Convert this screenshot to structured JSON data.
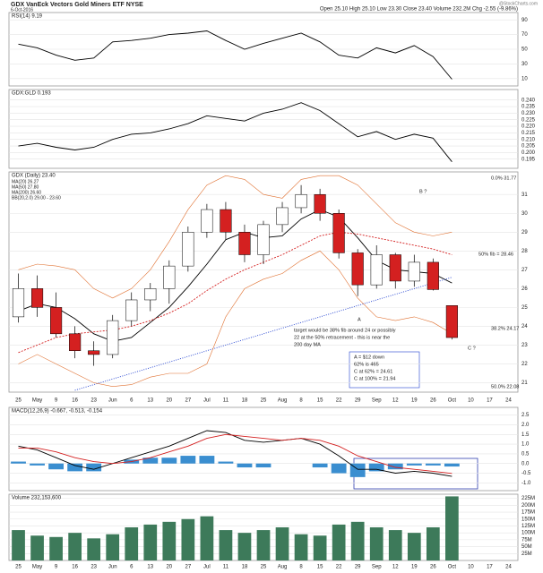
{
  "header": {
    "title": "GDX VanEck Vectors Gold Miners ETF NYSE",
    "date": "6-Oct-2016",
    "quote": "Open 25.10 High 25.10 Low 23.30 Close 23.40 Volume 232.2M Chg -2.55 (-9.86%)",
    "source": "@StockCharts.com"
  },
  "chart_data": [
    {
      "type": "line",
      "title": "RSI(14) 9.19",
      "ylim": [
        0,
        100
      ],
      "yticks": [
        10,
        30,
        50,
        70,
        90
      ],
      "grid": true,
      "series": [
        {
          "color": "#000000",
          "values": [
            57,
            52,
            42,
            35,
            38,
            60,
            62,
            65,
            70,
            72,
            75,
            62,
            50,
            58,
            65,
            72,
            60,
            42,
            38,
            52,
            45,
            55,
            40,
            9.19,
            null,
            null,
            null
          ]
        }
      ]
    },
    {
      "type": "line",
      "title": "GDX:GLD 0.193",
      "ylim": [
        0.188,
        0.248
      ],
      "yticks": [
        {
          "value": 0.195,
          "label": "0.195"
        },
        {
          "value": 0.2,
          "label": "0.200"
        },
        {
          "value": 0.205,
          "label": "0.205"
        },
        {
          "value": 0.21,
          "label": "0.210"
        },
        {
          "value": 0.215,
          "label": "0.215"
        },
        {
          "value": 0.22,
          "label": "0.220"
        },
        {
          "value": 0.225,
          "label": "0.225"
        },
        {
          "value": 0.23,
          "label": "0.230"
        },
        {
          "value": 0.235,
          "label": "0.235"
        },
        {
          "value": 0.24,
          "label": "0.240"
        }
      ],
      "grid": true,
      "series": [
        {
          "color": "#000000",
          "values": [
            0.205,
            0.207,
            0.204,
            0.202,
            0.204,
            0.21,
            0.214,
            0.215,
            0.218,
            0.222,
            0.228,
            0.226,
            0.224,
            0.23,
            0.233,
            0.238,
            0.232,
            0.222,
            0.212,
            0.216,
            0.21,
            0.214,
            0.211,
            0.193,
            null,
            null,
            null
          ]
        }
      ]
    },
    {
      "type": "candlestick",
      "title": "GDX (Daily) 23.40",
      "ylim": [
        20.5,
        32.2
      ],
      "yticks": [
        21,
        22,
        23,
        24,
        25,
        26,
        27,
        28,
        29,
        30,
        31
      ],
      "grid": true,
      "categories": [
        "25",
        "May",
        "9",
        "16",
        "23",
        "Jun",
        "6",
        "13",
        "20",
        "27",
        "Jul",
        "11",
        "18",
        "25",
        "Aug",
        "8",
        "15",
        "22",
        "29",
        "Sep",
        "12",
        "19",
        "26",
        "Oct",
        "10",
        "17",
        "24"
      ],
      "open": [
        24.5,
        26.0,
        25.0,
        23.6,
        22.7,
        22.5,
        24.3,
        25.4,
        26.0,
        27.2,
        29.0,
        30.2,
        29.0,
        27.8,
        29.4,
        30.3,
        31.0,
        30.0,
        27.9,
        26.2,
        27.8,
        26.4,
        27.4,
        25.1,
        null,
        null,
        null
      ],
      "high": [
        26.8,
        26.7,
        25.8,
        24.0,
        23.2,
        24.6,
        25.8,
        26.3,
        27.5,
        29.3,
        30.5,
        30.6,
        29.4,
        29.6,
        30.6,
        31.5,
        31.3,
        30.2,
        28.1,
        28.3,
        27.9,
        27.8,
        27.6,
        25.1,
        null,
        null,
        null
      ],
      "low": [
        24.2,
        24.5,
        23.4,
        22.3,
        21.9,
        22.3,
        24.0,
        24.8,
        25.2,
        26.9,
        28.7,
        28.6,
        27.4,
        27.3,
        29.0,
        30.0,
        29.6,
        27.6,
        25.6,
        26.0,
        26.0,
        26.1,
        25.9,
        23.3,
        null,
        null,
        null
      ],
      "close": [
        26.0,
        25.0,
        23.6,
        22.7,
        22.5,
        24.3,
        25.4,
        26.0,
        27.2,
        29.0,
        30.2,
        29.0,
        27.8,
        29.4,
        30.3,
        31.0,
        30.0,
        27.9,
        26.2,
        27.8,
        26.4,
        27.4,
        25.95,
        23.4,
        null,
        null,
        null
      ],
      "series": [
        {
          "name": "MA(20) 26.27",
          "color": "#000000",
          "values": [
            24.8,
            25.2,
            25.0,
            24.4,
            23.6,
            23.2,
            23.4,
            24.2,
            25.0,
            26.1,
            27.3,
            28.6,
            29.0,
            28.7,
            28.8,
            29.7,
            30.2,
            29.8,
            28.7,
            27.5,
            27.0,
            26.9,
            26.8,
            26.3,
            null,
            null,
            null
          ]
        },
        {
          "name": "MA(50) 27.80",
          "color": "#d42020",
          "values": [
            22.6,
            23.0,
            23.4,
            23.6,
            23.7,
            23.8,
            24.0,
            24.3,
            24.7,
            25.2,
            25.9,
            26.5,
            27.0,
            27.4,
            27.8,
            28.3,
            28.8,
            29.0,
            28.9,
            28.7,
            28.5,
            28.3,
            28.1,
            27.8,
            null,
            null,
            null
          ]
        },
        {
          "name": "MA(200) 26.60",
          "color": "#2040d0",
          "values": [
            null,
            null,
            null,
            20.6,
            20.9,
            21.2,
            21.5,
            21.8,
            22.1,
            22.4,
            22.7,
            23.0,
            23.3,
            23.6,
            23.9,
            24.2,
            24.5,
            24.8,
            25.1,
            25.4,
            25.7,
            26.0,
            26.3,
            26.6,
            null,
            null,
            null
          ]
        },
        {
          "name": "BB(20,2.0) 29.00 - 23.60",
          "color": "#e07030",
          "values": [
            27.0,
            27.3,
            27.2,
            27.0,
            26.0,
            25.5,
            26.0,
            27.0,
            28.5,
            30.2,
            31.5,
            32.0,
            31.8,
            31.0,
            30.8,
            31.8,
            32.0,
            32.0,
            31.5,
            30.5,
            29.5,
            29.0,
            28.8,
            29.0,
            null,
            null,
            null
          ]
        },
        {
          "color": "#e07030",
          "values": [
            22.0,
            22.5,
            22.0,
            21.5,
            21.0,
            20.8,
            20.9,
            21.3,
            21.5,
            21.5,
            22.0,
            24.5,
            26.0,
            26.5,
            26.8,
            27.5,
            28.0,
            27.0,
            25.5,
            24.5,
            24.3,
            24.5,
            24.2,
            23.6,
            null,
            null,
            null
          ]
        }
      ],
      "annotations": [
        "B ?",
        "C ?",
        "A",
        "50% fib = 28.46",
        "target would be 38% fib around 24 or possibly",
        "22 at the 50% retracement - this is near the",
        "200 day MA",
        "A = $12 down",
        "62% is 465",
        "C at 62% = 24.61",
        "C at 100% = 21.94"
      ],
      "fib_labels": [
        "0.0% 31.77",
        "38.2% 24.17",
        "50.0% 22.08"
      ]
    },
    {
      "type": "macd",
      "title": "MACD(12,26,9) -0.667, -0.513, -0.154",
      "ylim": [
        -1.4,
        2.9
      ],
      "yticks": [
        {
          "value": -1,
          "label": "-1.0"
        },
        {
          "value": -0.5,
          "label": "-0.5"
        },
        {
          "value": 0,
          "label": "0.0"
        },
        {
          "value": 0.5,
          "label": "0.5"
        },
        {
          "value": 1,
          "label": "1.0"
        },
        {
          "value": 1.5,
          "label": "1.5"
        },
        {
          "value": 2,
          "label": "2.0"
        },
        {
          "value": 2.5,
          "label": "2.5"
        }
      ],
      "grid": true,
      "series": [
        {
          "color": "#000000",
          "values": [
            0.9,
            0.7,
            0.3,
            -0.1,
            -0.3,
            0.0,
            0.3,
            0.6,
            0.9,
            1.3,
            1.7,
            1.6,
            1.2,
            1.1,
            1.2,
            1.3,
            1.0,
            0.4,
            -0.3,
            -0.3,
            -0.5,
            -0.4,
            -0.5,
            -0.667,
            null,
            null,
            null
          ]
        },
        {
          "color": "#d42020",
          "values": [
            0.8,
            0.8,
            0.6,
            0.3,
            0.1,
            0.0,
            0.1,
            0.3,
            0.6,
            0.9,
            1.3,
            1.5,
            1.4,
            1.3,
            1.2,
            1.3,
            1.2,
            0.9,
            0.4,
            0.1,
            -0.2,
            -0.3,
            -0.4,
            -0.513,
            null,
            null,
            null
          ]
        }
      ],
      "histogram": {
        "color": "#3a8ed0",
        "values": [
          0.1,
          -0.1,
          -0.3,
          -0.4,
          -0.4,
          0.0,
          0.2,
          0.3,
          0.3,
          0.4,
          0.4,
          0.1,
          -0.2,
          -0.2,
          0.0,
          0.0,
          -0.2,
          -0.5,
          -0.7,
          -0.4,
          -0.3,
          -0.1,
          -0.1,
          -0.154,
          null,
          null,
          null
        ]
      }
    },
    {
      "type": "bar",
      "title": "Volume 232,153,600",
      "ylim": [
        0,
        240000000
      ],
      "yticks": [
        {
          "value": 25000000,
          "label": "25M"
        },
        {
          "value": 50000000,
          "label": "50M"
        },
        {
          "value": 75000000,
          "label": "75M"
        },
        {
          "value": 100000000,
          "label": "100M"
        },
        {
          "value": 125000000,
          "label": "125M"
        },
        {
          "value": 150000000,
          "label": "150M"
        },
        {
          "value": 175000000,
          "label": "175M"
        },
        {
          "value": 200000000,
          "label": "200M"
        },
        {
          "value": 225000000,
          "label": "225M"
        }
      ],
      "grid": true,
      "color": "#3d7a5a",
      "categories": [
        "25",
        "May",
        "9",
        "16",
        "23",
        "Jun",
        "6",
        "13",
        "20",
        "27",
        "Jul",
        "11",
        "18",
        "25",
        "Aug",
        "8",
        "15",
        "22",
        "29",
        "Sep",
        "12",
        "19",
        "26",
        "Oct",
        "10",
        "17",
        "24"
      ],
      "values": [
        110000000,
        90000000,
        85000000,
        100000000,
        80000000,
        95000000,
        120000000,
        130000000,
        140000000,
        150000000,
        160000000,
        110000000,
        100000000,
        110000000,
        120000000,
        95000000,
        90000000,
        130000000,
        140000000,
        120000000,
        110000000,
        100000000,
        120000000,
        232153600,
        null,
        null,
        null
      ]
    }
  ]
}
